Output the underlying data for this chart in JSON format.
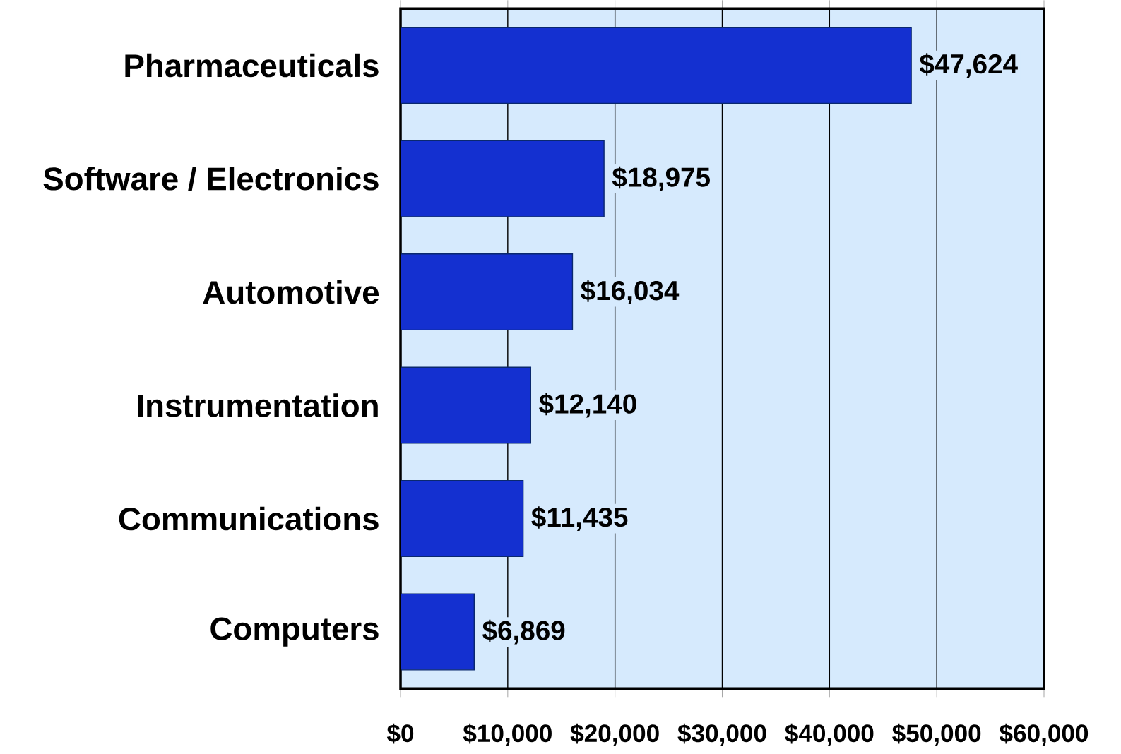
{
  "chart_data": {
    "type": "bar",
    "orientation": "horizontal",
    "categories": [
      "Pharmaceuticals",
      "Software / Electronics",
      "Automotive",
      "Instrumentation",
      "Communications",
      "Computers"
    ],
    "values": [
      47624,
      18975,
      16034,
      12140,
      11435,
      6869
    ],
    "value_labels": [
      "$47,624",
      "$18,975",
      "$16,034",
      "$12,140",
      "$11,435",
      "$6,869"
    ],
    "color": "#1430d0",
    "xlim": [
      0,
      60000
    ],
    "xticks": [
      {
        "value": 0,
        "label": "$0"
      },
      {
        "value": 10000,
        "label": "$10,000"
      },
      {
        "value": 20000,
        "label": "$20,000"
      },
      {
        "value": 30000,
        "label": "$30,000"
      },
      {
        "value": 40000,
        "label": "$40,000"
      },
      {
        "value": 50000,
        "label": "$50,000"
      },
      {
        "value": 60000,
        "label": "$60,000"
      }
    ],
    "grid": "x"
  }
}
